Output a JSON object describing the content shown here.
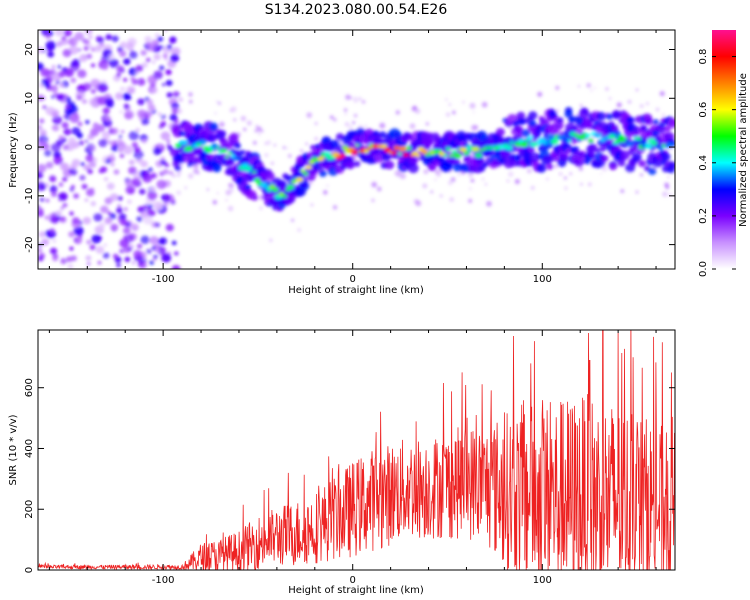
{
  "figure": {
    "title": "S134.2023.080.00.54.E26"
  },
  "chart_data": [
    {
      "type": "heatmap",
      "title": "S134.2023.080.00.54.E26",
      "xlabel": "Height of straight line (km)",
      "ylabel": "Frequency (Hz)",
      "xlim": [
        -166,
        170
      ],
      "ylim": [
        -25,
        24
      ],
      "xticks": [
        -100,
        0,
        100
      ],
      "yticks": [
        -20,
        -10,
        0,
        10,
        20
      ],
      "colorbar": {
        "label": "Normalized spectral amplitude",
        "range": [
          0.0,
          0.9
        ],
        "ticks": [
          0.0,
          0.2,
          0.4,
          0.6,
          0.8
        ],
        "colormap": [
          "#ffffff",
          "#c890ff",
          "#7a00ff",
          "#0000ff",
          "#00ffff",
          "#00ff00",
          "#ffff00",
          "#ff8000",
          "#ff0000",
          "#ff1090"
        ]
      },
      "ridge": {
        "description_points_x": [
          -93,
          -85,
          -75,
          -65,
          -55,
          -48,
          -42,
          -38,
          -35,
          -30,
          -25,
          -20,
          -15,
          -10,
          -5,
          0,
          10,
          20,
          30,
          40,
          50,
          60,
          70,
          80,
          90,
          100,
          110,
          120,
          130,
          140,
          150,
          160,
          168
        ],
        "description_points_y": [
          0,
          0.5,
          0,
          -1.5,
          -5,
          -7,
          -9,
          -10,
          -9,
          -7,
          -5,
          -3,
          -2,
          -2,
          -1,
          -0.5,
          0,
          -0.5,
          -1,
          -1,
          -1,
          -1,
          -1,
          0,
          1,
          1,
          2,
          2,
          2,
          1.5,
          1,
          0.5,
          0
        ]
      }
    },
    {
      "type": "line",
      "xlabel": "Height of straight line (km)",
      "ylabel": "SNR (10 * v/v)",
      "xlim": [
        -166,
        170
      ],
      "ylim": [
        0,
        790
      ],
      "xticks": [
        -100,
        0,
        100
      ],
      "yticks": [
        0,
        200,
        400,
        600
      ],
      "color": "#ee2222",
      "envelope_x": [
        -166,
        -90,
        -80,
        -70,
        -60,
        -50,
        -40,
        -30,
        -20,
        -10,
        0,
        10,
        20,
        30,
        40,
        50,
        60,
        70,
        80,
        90,
        100,
        110,
        120,
        130,
        140,
        150,
        160,
        170
      ],
      "envelope_mean_y": [
        10,
        10,
        40,
        45,
        60,
        90,
        110,
        120,
        140,
        170,
        200,
        230,
        250,
        270,
        270,
        280,
        290,
        280,
        260,
        250,
        230,
        240,
        240,
        230,
        230,
        220,
        210,
        200
      ],
      "envelope_spread_y": [
        6,
        8,
        50,
        60,
        70,
        90,
        100,
        110,
        120,
        140,
        160,
        170,
        170,
        170,
        170,
        180,
        190,
        200,
        260,
        300,
        320,
        330,
        340,
        350,
        320,
        300,
        280,
        260
      ],
      "peaks": [
        {
          "x": 94,
          "y": 680
        },
        {
          "x": 125,
          "y": 690
        },
        {
          "x": 132,
          "y": 790
        },
        {
          "x": 140,
          "y": 780
        },
        {
          "x": 148,
          "y": 700
        },
        {
          "x": 168,
          "y": 650
        }
      ]
    }
  ]
}
